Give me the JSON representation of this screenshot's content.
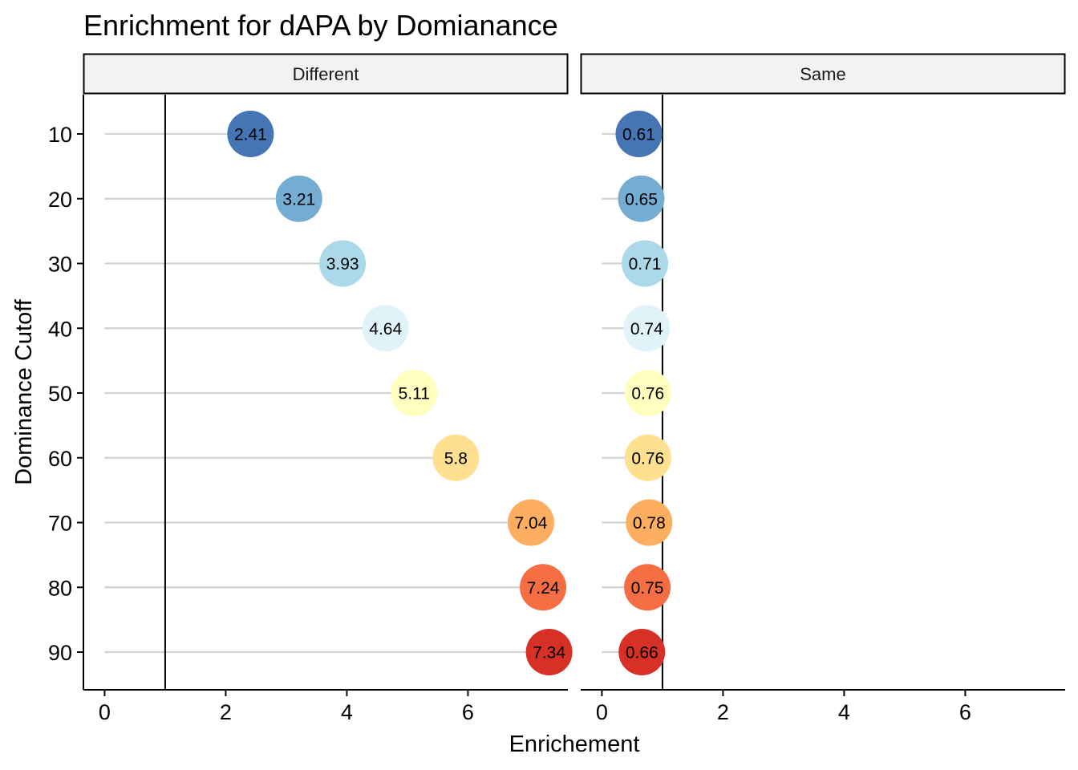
{
  "chart_data": {
    "type": "lollipop",
    "title": "Enrichment for dAPA by Domianance",
    "xlabel": "Enrichement",
    "ylabel": "Dominance Cutoff",
    "xlim": [
      -0.35,
      7.65
    ],
    "x_ticks": [
      0,
      2,
      4,
      6
    ],
    "x_tick_labels": [
      "0",
      "2",
      "4",
      "6"
    ],
    "reference_line_x": 1,
    "categories": [
      "10",
      "20",
      "30",
      "40",
      "50",
      "60",
      "70",
      "80",
      "90"
    ],
    "category_colors": [
      "#4575b4",
      "#74add1",
      "#abd9e9",
      "#e0f3f8",
      "#ffffbf",
      "#fee090",
      "#fdae61",
      "#f46d43",
      "#d73027"
    ],
    "segment_color": "#d3d3d3",
    "grid": false,
    "legend": "none",
    "facets": [
      {
        "name": "Different",
        "values": [
          2.41,
          3.21,
          3.93,
          4.64,
          5.11,
          5.8,
          7.04,
          7.24,
          7.34
        ],
        "labels": [
          "2.41",
          "3.21",
          "3.93",
          "4.64",
          "5.11",
          "5.8",
          "7.04",
          "7.24",
          "7.34"
        ]
      },
      {
        "name": "Same",
        "values": [
          0.61,
          0.65,
          0.71,
          0.74,
          0.76,
          0.76,
          0.78,
          0.75,
          0.66
        ],
        "labels": [
          "0.61",
          "0.65",
          "0.71",
          "0.74",
          "0.76",
          "0.76",
          "0.78",
          "0.75",
          "0.66"
        ]
      }
    ]
  }
}
